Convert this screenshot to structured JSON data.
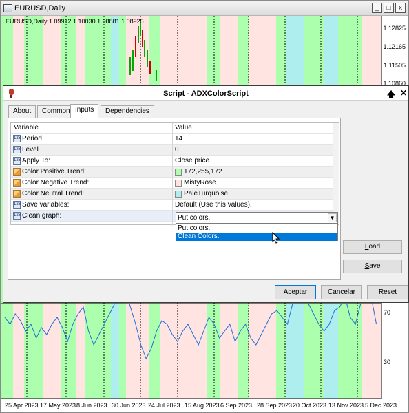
{
  "chart": {
    "title": "EURUSD,Daily",
    "ohlc_header": "EURUSD,Daily  1.09912 1.10030 1.08881 1.08925",
    "price_labels": [
      "1.12825",
      "1.12165",
      "1.11505",
      "1.10860"
    ],
    "indicator_labels": [
      "70",
      "30"
    ],
    "date_labels": [
      "25 Apr 2023",
      "17 May 2023",
      "8 Jun 2023",
      "30 Jun 2023",
      "24 Jul 2023",
      "15 Aug 2023",
      "6 Sep 2023",
      "28 Sep 2023",
      "20 Oct 2023",
      "13 Nov 2023",
      "5 Dec 2023"
    ],
    "colors": {
      "positive": "#acffac",
      "negative": "#ffe4e1",
      "neutral": "#afeeee",
      "line": "#1e6fd9"
    },
    "window_buttons": {
      "minimize": "_",
      "restore": "□",
      "close": "x"
    }
  },
  "dialog": {
    "title": "Script - ADXColorScript",
    "help_button": "🡅",
    "close_button": "✕",
    "tabs": [
      "About",
      "Common",
      "Inputs",
      "Dependencies"
    ],
    "active_tab": "Inputs",
    "grid": {
      "headers": {
        "variable": "Variable",
        "value": "Value"
      },
      "rows": [
        {
          "variable": "Period",
          "value": "14",
          "icon": "numeric-icon"
        },
        {
          "variable": "Level",
          "value": "0",
          "icon": "numeric-icon"
        },
        {
          "variable": "Apply To:",
          "value": "Close price",
          "icon": "numeric-icon"
        },
        {
          "variable": "Color Positive Trend:",
          "value": "172,255,172",
          "icon": "color-icon",
          "swatch": "#acffac"
        },
        {
          "variable": "Color Negative Trend:",
          "value": "MistyRose",
          "icon": "color-icon",
          "swatch": "#ffe4e1"
        },
        {
          "variable": "Color Neutral Trend:",
          "value": "PaleTurquoise",
          "icon": "color-icon",
          "swatch": "#afeeee"
        },
        {
          "variable": "Save variables:",
          "value": "Default (Use this values).",
          "icon": "numeric-icon"
        },
        {
          "variable": "Clean graph:",
          "value": "",
          "icon": "numeric-icon"
        }
      ]
    },
    "dropdown": {
      "selected": "Put colors.",
      "options": [
        "Put colors.",
        "Clean Colors."
      ],
      "highlighted": "Clean Colors."
    },
    "load_button": {
      "prefix": "",
      "underlined": "L",
      "rest": "oad"
    },
    "save_button": {
      "prefix": "",
      "underlined": "S",
      "rest": "ave"
    },
    "ok_button": "Aceptar",
    "cancel_button": "Cancelar",
    "reset_button": "Reset"
  }
}
